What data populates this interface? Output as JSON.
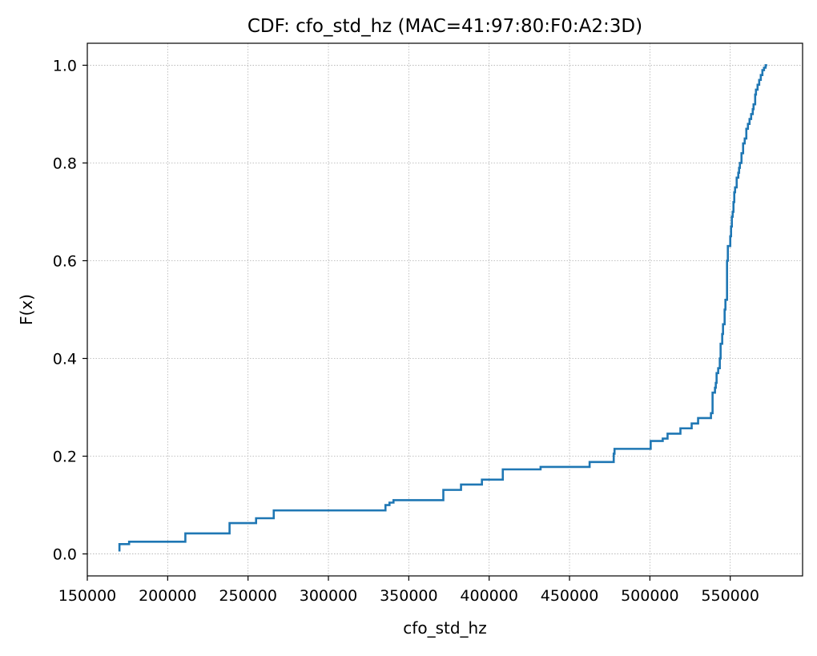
{
  "chart_data": {
    "type": "line",
    "step": true,
    "title": "CDF: cfo_std_hz (MAC=41:97:80:F0:A2:3D)",
    "xlabel": "cfo_std_hz",
    "ylabel": "F(x)",
    "xlim": [
      150000,
      595000
    ],
    "ylim": [
      -0.045,
      1.045
    ],
    "xticks": [
      150000,
      200000,
      250000,
      300000,
      350000,
      400000,
      450000,
      500000,
      550000
    ],
    "xtick_labels": [
      "150000",
      "200000",
      "250000",
      "300000",
      "350000",
      "400000",
      "450000",
      "500000",
      "550000"
    ],
    "yticks": [
      0.0,
      0.2,
      0.4,
      0.6,
      0.8,
      1.0
    ],
    "ytick_labels": [
      "0.0",
      "0.2",
      "0.4",
      "0.6",
      "0.8",
      "1.0"
    ],
    "grid": true,
    "grid_style": "dotted",
    "series": [
      {
        "color": "#1f77b4",
        "x": [
          170000,
          170000,
          176000,
          211000,
          238500,
          255000,
          266000,
          335500,
          338000,
          340500,
          371500,
          382500,
          395500,
          408500,
          432000,
          462500,
          477500,
          478000,
          500500,
          508000,
          511000,
          519000,
          526000,
          530000,
          538000,
          539000,
          540500,
          541000,
          541500,
          542500,
          543500,
          544000,
          545000,
          545500,
          546500,
          547000,
          548000,
          548500,
          550000,
          550500,
          551000,
          551500,
          552000,
          552500,
          553000,
          554000,
          555000,
          555500,
          556000,
          557000,
          558000,
          559000,
          560000,
          561000,
          562000,
          563000,
          564000,
          564500,
          565500,
          566000,
          567000,
          568000,
          569000,
          570000,
          571000,
          572000,
          573000
        ],
        "y": [
          0.005,
          0.02,
          0.025,
          0.042,
          0.063,
          0.073,
          0.089,
          0.1,
          0.105,
          0.11,
          0.131,
          0.142,
          0.152,
          0.173,
          0.178,
          0.188,
          0.205,
          0.215,
          0.231,
          0.236,
          0.246,
          0.257,
          0.267,
          0.278,
          0.288,
          0.33,
          0.34,
          0.35,
          0.37,
          0.38,
          0.4,
          0.43,
          0.45,
          0.47,
          0.5,
          0.52,
          0.6,
          0.63,
          0.65,
          0.67,
          0.69,
          0.7,
          0.72,
          0.74,
          0.75,
          0.77,
          0.78,
          0.79,
          0.8,
          0.82,
          0.84,
          0.85,
          0.87,
          0.88,
          0.89,
          0.9,
          0.91,
          0.92,
          0.94,
          0.95,
          0.96,
          0.97,
          0.98,
          0.99,
          0.995,
          1.0,
          1.0
        ]
      }
    ]
  }
}
